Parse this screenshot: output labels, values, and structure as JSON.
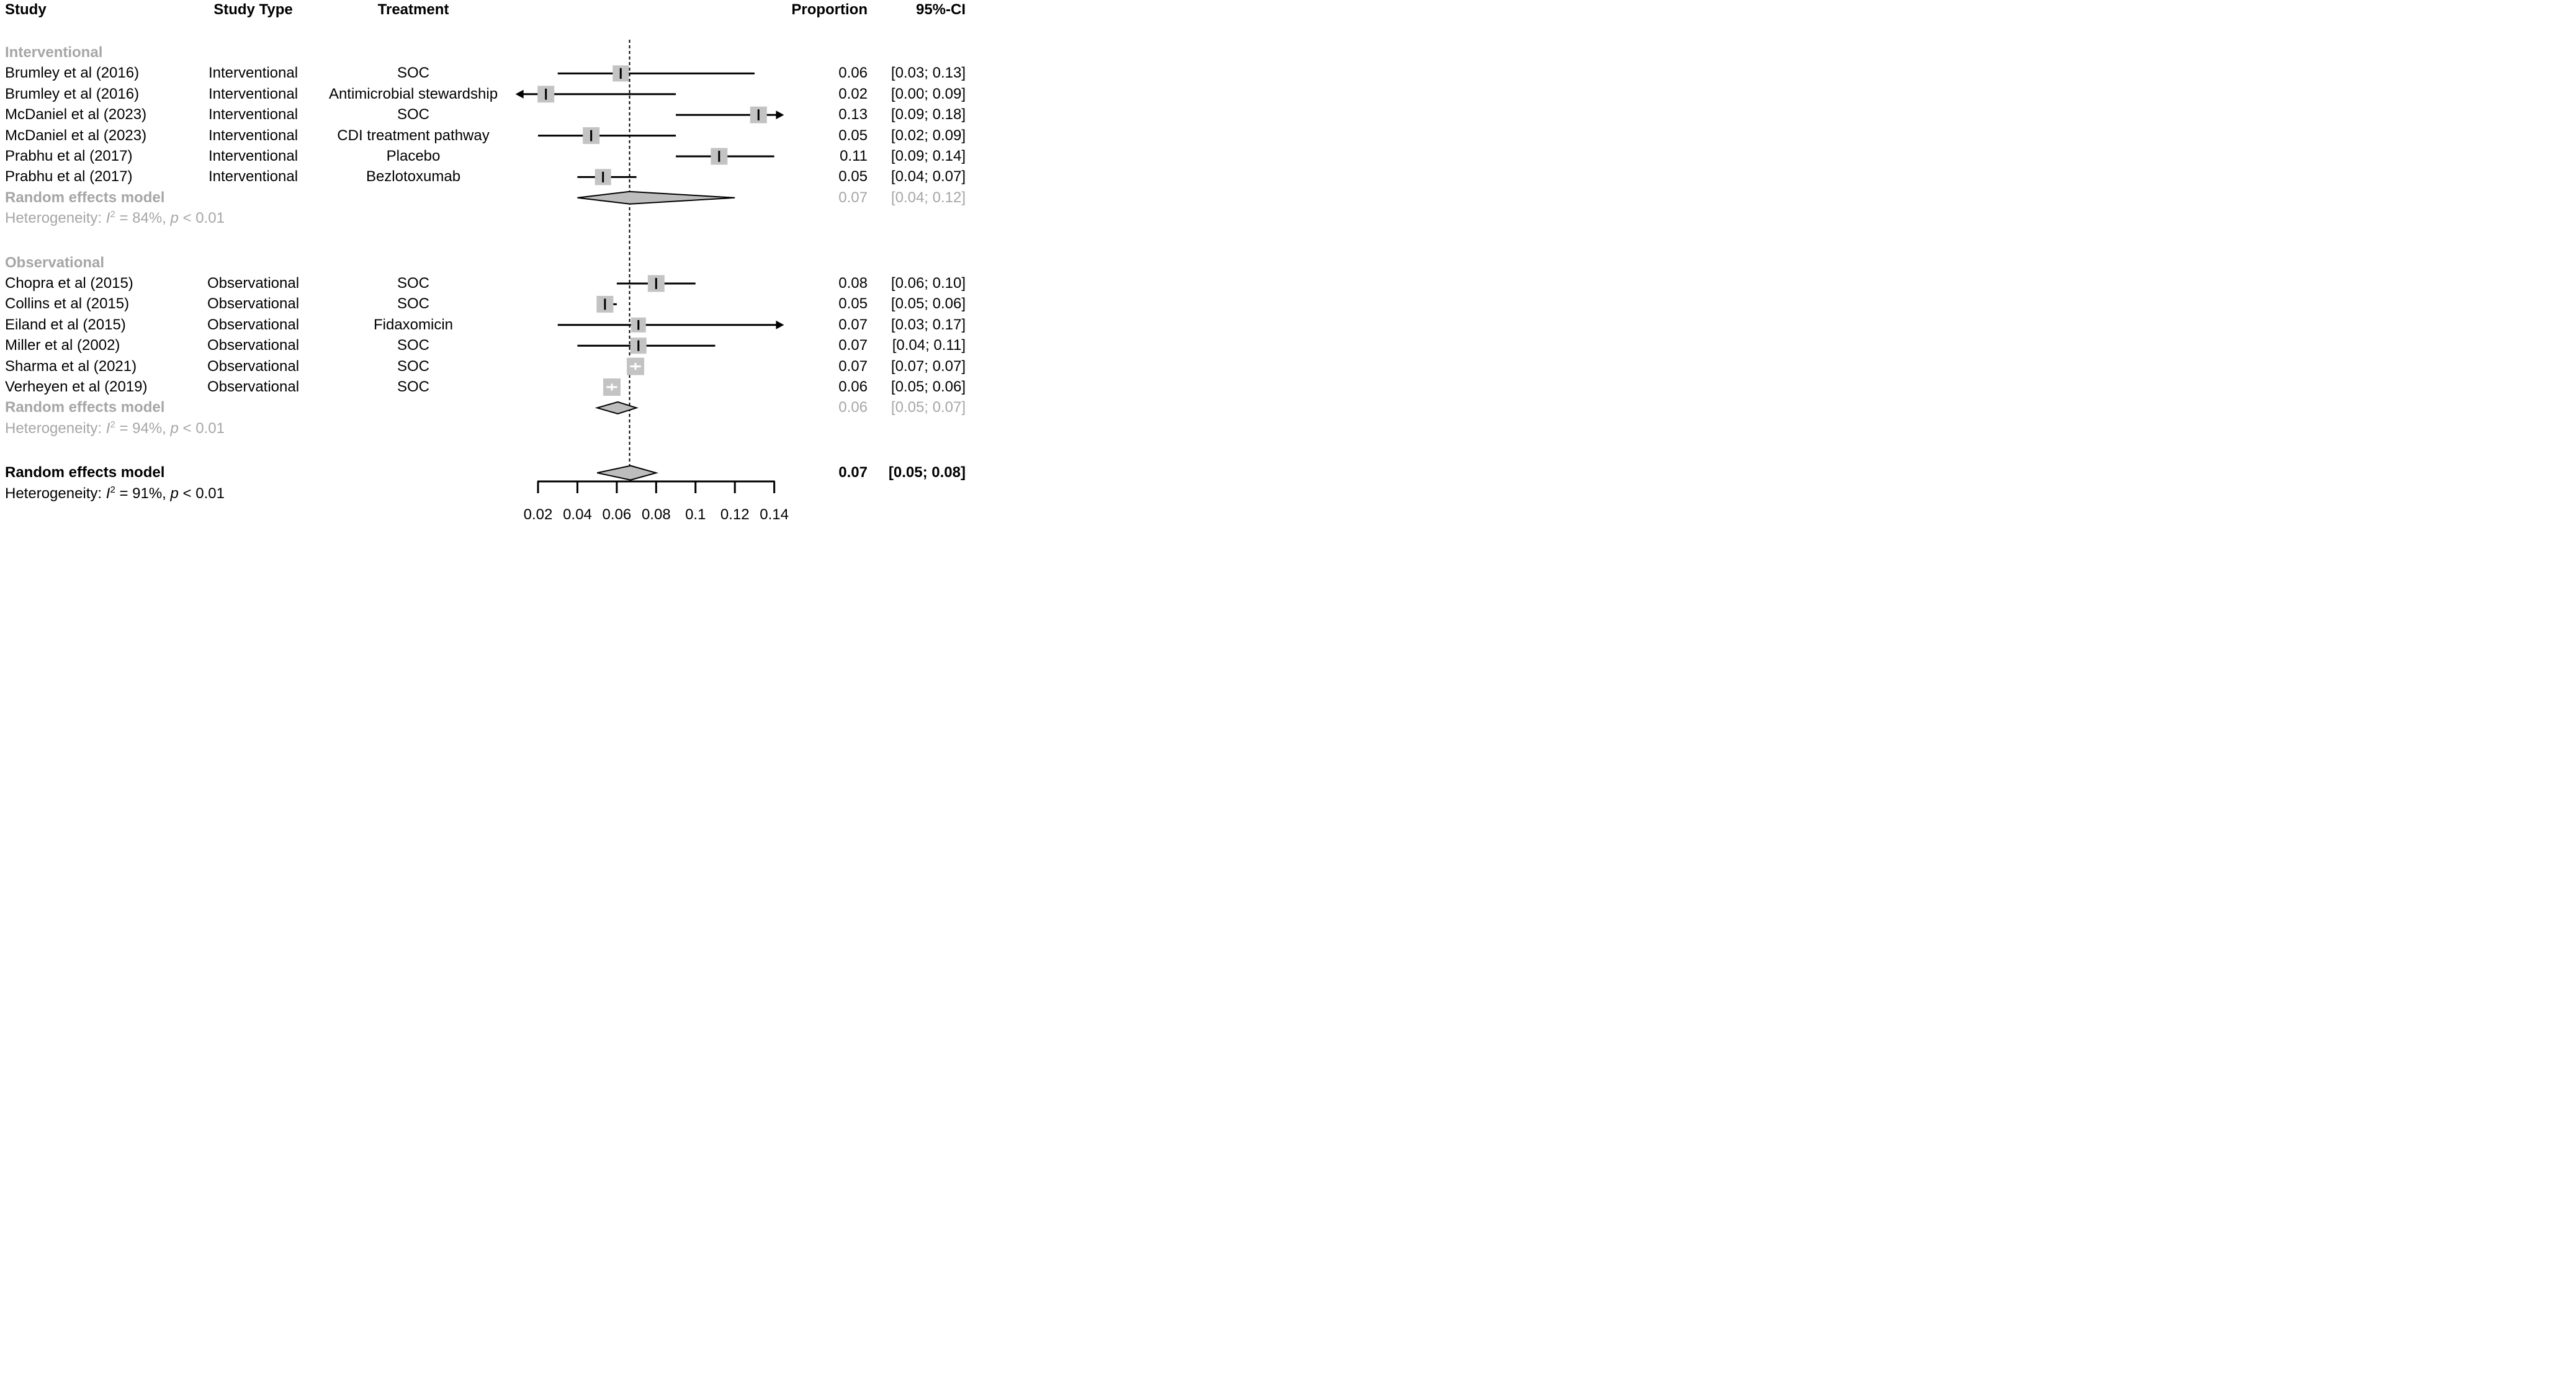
{
  "colors": {
    "background": "#ffffff",
    "text": "#000000",
    "muted_gray": "#a6a6a6",
    "square_fill": "#c3c3c3",
    "diamond_fill": "#bdbdbd",
    "line_black": "#000000",
    "white_marker": "#ffffff"
  },
  "header": {
    "study": "Study",
    "study_type": "Study Type",
    "treatment": "Treatment",
    "proportion": "Proportion",
    "ci": "95%-CI"
  },
  "het_labels": {
    "prefix": "Heterogeneity: ",
    "i_symbol": "I",
    "i_exp": "2",
    "p_symbol": "p"
  },
  "chart_data": {
    "type": "forest",
    "title": "",
    "xlabel": "",
    "axis": {
      "ticks": [
        0.02,
        0.04,
        0.06,
        0.08,
        0.1,
        0.12,
        0.14
      ],
      "tick_labels": [
        "0.02",
        "0.04",
        "0.06",
        "0.08",
        "0.1",
        "0.12",
        "0.14"
      ],
      "min": 0.02,
      "max": 0.14,
      "clip_low": 0.012,
      "clip_high": 0.1415,
      "null_line": 0.0665,
      "grid": false
    },
    "rows": [
      {
        "kind": "group",
        "study": "Interventional"
      },
      {
        "kind": "study",
        "study": "Brumley et al (2016)",
        "study_type": "Interventional",
        "treatment": "SOC",
        "proportion": "0.06",
        "ci": "[0.03; 0.13]",
        "est": 0.062,
        "lo": 0.03,
        "hi": 0.13,
        "size": 26
      },
      {
        "kind": "study",
        "study": "Brumley et al (2016)",
        "study_type": "Interventional",
        "treatment": "Antimicrobial stewardship",
        "proportion": "0.02",
        "ci": "[0.00; 0.09]",
        "est": 0.024,
        "lo": 0.0,
        "hi": 0.09,
        "size": 27,
        "arrow_lo": true
      },
      {
        "kind": "study",
        "study": "McDaniel et al (2023)",
        "study_type": "Interventional",
        "treatment": "SOC",
        "proportion": "0.13",
        "ci": "[0.09; 0.18]",
        "est": 0.132,
        "lo": 0.09,
        "hi": 0.18,
        "size": 27,
        "arrow_hi": true
      },
      {
        "kind": "study",
        "study": "McDaniel et al (2023)",
        "study_type": "Interventional",
        "treatment": "CDI treatment pathway",
        "proportion": "0.05",
        "ci": "[0.02; 0.09]",
        "est": 0.047,
        "lo": 0.02,
        "hi": 0.09,
        "size": 27
      },
      {
        "kind": "study",
        "study": "Prabhu et al (2017)",
        "study_type": "Interventional",
        "treatment": "Placebo",
        "proportion": "0.11",
        "ci": "[0.09; 0.14]",
        "est": 0.112,
        "lo": 0.09,
        "hi": 0.14,
        "size": 27
      },
      {
        "kind": "study",
        "study": "Prabhu et al (2017)",
        "study_type": "Interventional",
        "treatment": "Bezlotoxumab",
        "proportion": "0.05",
        "ci": "[0.04; 0.07]",
        "est": 0.053,
        "lo": 0.04,
        "hi": 0.07,
        "size": 26
      },
      {
        "kind": "summary",
        "study": "Random effects model",
        "proportion": "0.07",
        "ci": "[0.04; 0.12]",
        "lo": 0.04,
        "mid": 0.0665,
        "hi": 0.12,
        "dh": 20
      },
      {
        "kind": "het",
        "i2": "84%",
        "p": "< 0.01",
        "gray": true,
        "section_end": true
      },
      {
        "kind": "group",
        "study": "Observational"
      },
      {
        "kind": "study",
        "study": "Chopra et al (2015)",
        "study_type": "Observational",
        "treatment": "SOC",
        "proportion": "0.08",
        "ci": "[0.06; 0.10]",
        "est": 0.08,
        "lo": 0.06,
        "hi": 0.1,
        "size": 27
      },
      {
        "kind": "study",
        "study": "Collins et al (2015)",
        "study_type": "Observational",
        "treatment": "SOC",
        "proportion": "0.05",
        "ci": "[0.05; 0.06]",
        "est": 0.054,
        "lo": 0.05,
        "hi": 0.06,
        "size": 27
      },
      {
        "kind": "study",
        "study": "Eiland et al (2015)",
        "study_type": "Observational",
        "treatment": "Fidaxomicin",
        "proportion": "0.07",
        "ci": "[0.03; 0.17]",
        "est": 0.071,
        "lo": 0.03,
        "hi": 0.17,
        "size": 24,
        "arrow_hi": true
      },
      {
        "kind": "study",
        "study": "Miller et al (2002)",
        "study_type": "Observational",
        "treatment": "SOC",
        "proportion": "0.07",
        "ci": "[0.04; 0.11]",
        "est": 0.071,
        "lo": 0.04,
        "hi": 0.11,
        "size": 26
      },
      {
        "kind": "study",
        "study": "Sharma et al (2021)",
        "study_type": "Observational",
        "treatment": "SOC",
        "proportion": "0.07",
        "ci": "[0.07; 0.07]",
        "est": 0.0695,
        "lo": 0.07,
        "hi": 0.07,
        "size": 28,
        "inside_ci": true
      },
      {
        "kind": "study",
        "study": "Verheyen et al (2019)",
        "study_type": "Observational",
        "treatment": "SOC",
        "proportion": "0.06",
        "ci": "[0.05; 0.06]",
        "est": 0.0575,
        "lo": 0.05,
        "hi": 0.06,
        "size": 28,
        "inside_ci": true
      },
      {
        "kind": "summary",
        "study": "Random effects model",
        "proportion": "0.06",
        "ci": "[0.05; 0.07]",
        "lo": 0.05,
        "mid": 0.0605,
        "hi": 0.07,
        "dh": 19
      },
      {
        "kind": "het",
        "i2": "94%",
        "p": "< 0.01",
        "gray": true,
        "section_end": true
      },
      {
        "kind": "overall",
        "study": "Random effects model",
        "proportion": "0.07",
        "ci": "[0.05; 0.08]",
        "lo": 0.05,
        "mid": 0.067,
        "hi": 0.08,
        "dh": 23
      },
      {
        "kind": "het",
        "i2": "91%",
        "p": "< 0.01",
        "gray": false
      }
    ]
  }
}
